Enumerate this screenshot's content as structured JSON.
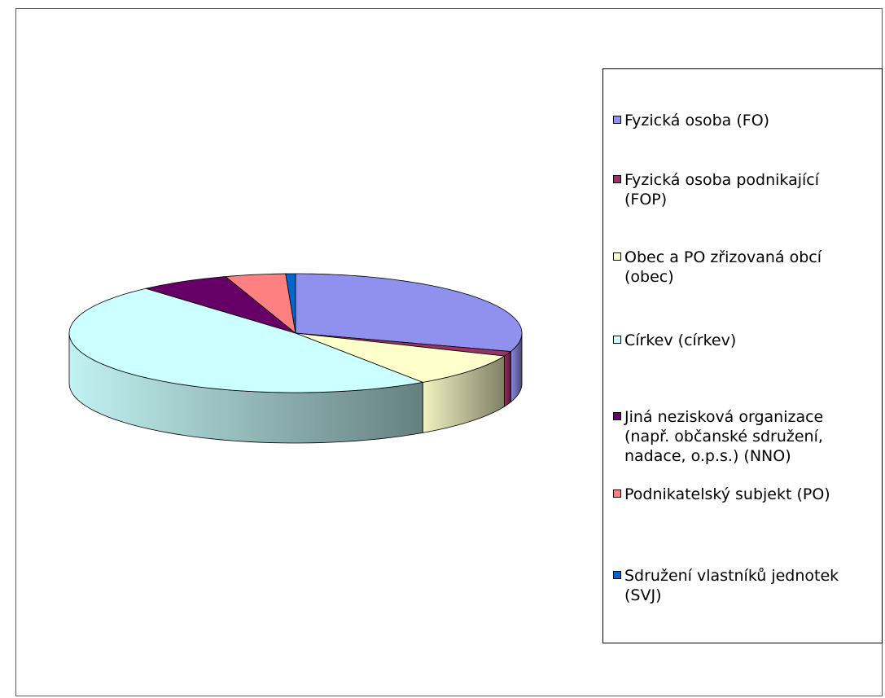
{
  "chart_data": {
    "type": "pie",
    "style": "3d",
    "title": "",
    "legend_position": "right",
    "slices": [
      {
        "label": "Fyzická osoba (FO)",
        "value": 30.0,
        "color": "#9090ee"
      },
      {
        "label": "Fyzická osoba podnikající\n(FOP)",
        "value": 1.3,
        "color": "#993366"
      },
      {
        "label": "Obec a PO zřizovaná obcí\n(obec)",
        "value": 9.2,
        "color": "#ffffcc"
      },
      {
        "label": "Církev (církev)",
        "value": 48.0,
        "color": "#ccffff"
      },
      {
        "label": " Jiná nezisková organizace\n(např. občanské sdružení,\nnadace, o.p.s.) (NNO)",
        "value": 6.5,
        "color": "#660066"
      },
      {
        "label": "Podnikatelský subjekt (PO)",
        "value": 4.3,
        "color": "#ff8080"
      },
      {
        "label": "Sdružení vlastníků jednotek\n(SVJ)",
        "value": 0.7,
        "color": "#0066cc"
      }
    ]
  }
}
